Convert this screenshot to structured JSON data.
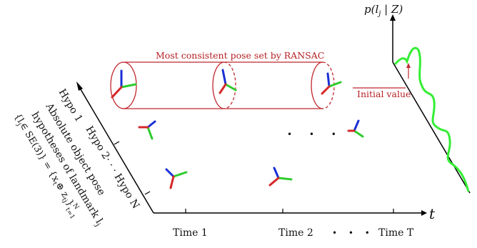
{
  "ransac_label": "Most consistent pose set by RANSAC",
  "initial_value_label": "Initial value",
  "density_label": "p(l",
  "density_label_sub": "j",
  "density_label_rest": " | Z)",
  "time_axis_label": "t",
  "time_labels": [
    "Time 1",
    "Time 2",
    "Time T"
  ],
  "time_dots": "• • •",
  "hypo_labels": {
    "h1": "Hypo 1",
    "h2": "Hypo 2· · · Hypo N"
  },
  "left_caption": {
    "line1": "Absolute object pose",
    "line2": "hypotheses of landmark l",
    "line2_sub": "j",
    "line3": "{l",
    "line3_b": "∈ SE(3)} = {x",
    "line3_c": "⊕ z",
    "line3_d": "}",
    "sub_j": "j",
    "sub_t": "t",
    "sub_tj": "tj",
    "sup_N": "N",
    "sub_t1": "t=1"
  },
  "middle_dots": "• • •",
  "colors": {
    "red": "#d62728",
    "green": "#2ecc2e",
    "blue": "#1a2fd6",
    "cylinder": "#c0272d",
    "curve": "#33ee33"
  }
}
